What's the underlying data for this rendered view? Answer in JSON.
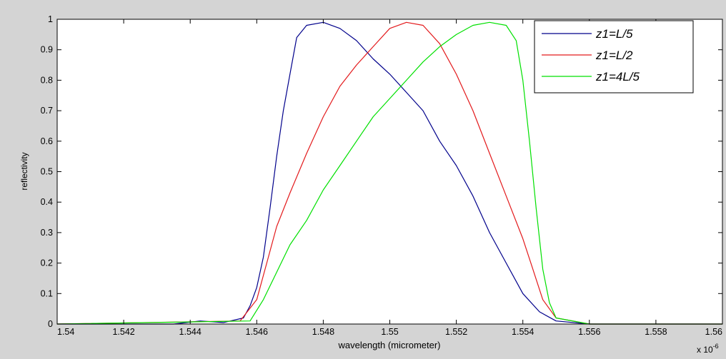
{
  "chart_data": {
    "type": "line",
    "title": "",
    "xlabel": "wavelength (micrometer)",
    "ylabel": "reflectivity",
    "x_exponent_label": "x 10",
    "x_exponent_power": "-6",
    "xlim": [
      1.54,
      1.56
    ],
    "ylim": [
      0,
      1
    ],
    "x_ticks": [
      1.54,
      1.542,
      1.544,
      1.546,
      1.548,
      1.55,
      1.552,
      1.554,
      1.556,
      1.558,
      1.56
    ],
    "x_tick_labels": [
      "1.54",
      "1.542",
      "1.544",
      "1.546",
      "1.548",
      "1.55",
      "1.552",
      "1.554",
      "1.556",
      "1.558",
      "1.56"
    ],
    "y_ticks": [
      0,
      0.1,
      0.2,
      0.3,
      0.4,
      0.5,
      0.6,
      0.7,
      0.8,
      0.9,
      1
    ],
    "y_tick_labels": [
      "0",
      "0.1",
      "0.2",
      "0.3",
      "0.4",
      "0.5",
      "0.6",
      "0.7",
      "0.8",
      "0.9",
      "1"
    ],
    "grid": false,
    "legend_position": "top-right",
    "series": [
      {
        "name": "z1=L/5",
        "color": "#00008b",
        "x": [
          1.54,
          1.5435,
          1.5443,
          1.545,
          1.5456,
          1.5458,
          1.546,
          1.5462,
          1.5464,
          1.5466,
          1.5468,
          1.547,
          1.5472,
          1.5475,
          1.548,
          1.5485,
          1.549,
          1.5495,
          1.55,
          1.5505,
          1.551,
          1.5515,
          1.552,
          1.5525,
          1.553,
          1.5535,
          1.554,
          1.5545,
          1.555,
          1.556,
          1.56
        ],
        "y": [
          0,
          0,
          0.01,
          0.005,
          0.02,
          0.06,
          0.12,
          0.22,
          0.38,
          0.55,
          0.7,
          0.82,
          0.94,
          0.98,
          0.99,
          0.97,
          0.93,
          0.87,
          0.82,
          0.76,
          0.7,
          0.6,
          0.52,
          0.42,
          0.3,
          0.2,
          0.1,
          0.04,
          0.01,
          0,
          0
        ]
      },
      {
        "name": "z1=L/2",
        "color": "#e31a1c",
        "x": [
          1.54,
          1.5455,
          1.546,
          1.5463,
          1.5466,
          1.547,
          1.5475,
          1.548,
          1.5485,
          1.549,
          1.5495,
          1.55,
          1.5505,
          1.551,
          1.5515,
          1.552,
          1.5525,
          1.553,
          1.5535,
          1.554,
          1.5543,
          1.5546,
          1.555,
          1.556,
          1.56
        ],
        "y": [
          0,
          0.01,
          0.08,
          0.2,
          0.32,
          0.43,
          0.56,
          0.68,
          0.78,
          0.85,
          0.91,
          0.97,
          0.99,
          0.98,
          0.92,
          0.82,
          0.7,
          0.56,
          0.42,
          0.28,
          0.18,
          0.08,
          0.02,
          0,
          0
        ]
      },
      {
        "name": "z1=4L/5",
        "color": "#00e000",
        "x": [
          1.54,
          1.5458,
          1.5462,
          1.5466,
          1.547,
          1.5475,
          1.548,
          1.5485,
          1.549,
          1.5495,
          1.55,
          1.5505,
          1.551,
          1.5515,
          1.552,
          1.5525,
          1.553,
          1.5535,
          1.5538,
          1.554,
          1.5542,
          1.5544,
          1.5546,
          1.5548,
          1.555,
          1.556,
          1.56
        ],
        "y": [
          0,
          0.01,
          0.08,
          0.17,
          0.26,
          0.34,
          0.44,
          0.52,
          0.6,
          0.68,
          0.74,
          0.8,
          0.86,
          0.91,
          0.95,
          0.98,
          0.99,
          0.98,
          0.93,
          0.8,
          0.6,
          0.38,
          0.18,
          0.07,
          0.02,
          0,
          0
        ]
      }
    ]
  }
}
